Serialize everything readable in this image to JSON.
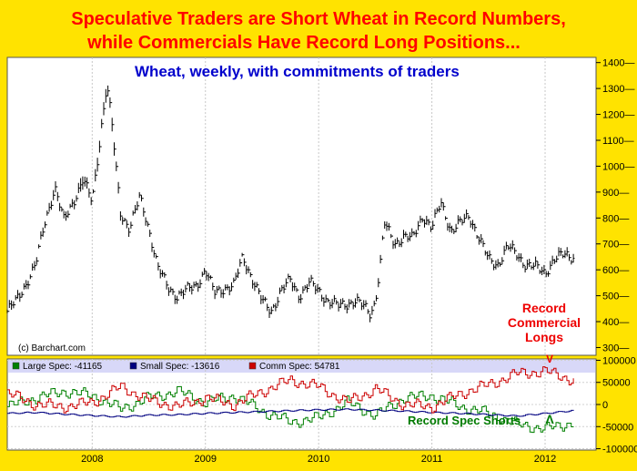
{
  "headline": {
    "line1": "Speculative Traders are Short Wheat in Record Numbers,",
    "line2": "while Commercials Have Record Long Positions..."
  },
  "colors": {
    "background": "#ffe300",
    "headline": "#ff0000",
    "title": "#0000cc",
    "price": "#000000",
    "large_spec": "#008000",
    "small_spec": "#000080",
    "comm_spec": "#cc0000",
    "annotation_red": "#ee0000",
    "annotation_green": "#007a00"
  },
  "chart_data": [
    {
      "type": "line",
      "title": "Wheat,  weekly,  with commitments of traders",
      "source": "(c) Barchart.com",
      "y_side": "right",
      "ylim": [
        270,
        1420
      ],
      "yticks": [
        300,
        400,
        500,
        600,
        700,
        800,
        900,
        1000,
        1100,
        1200,
        1300,
        1400
      ],
      "xlim": [
        2007.25,
        2012.45
      ],
      "xticks": [
        "2008",
        "2009",
        "2010",
        "2011",
        "2012"
      ],
      "xtick_values": [
        2008.0,
        2009.0,
        2010.0,
        2011.0,
        2012.0
      ],
      "series": [
        {
          "x": [
            2007.25,
            2007.33,
            2007.42,
            2007.5,
            2007.58,
            2007.67,
            2007.75,
            2007.83,
            2007.92,
            2008.0,
            2008.04,
            2008.08,
            2008.13,
            2008.17,
            2008.21,
            2008.25,
            2008.33,
            2008.42,
            2008.5,
            2008.58,
            2008.67,
            2008.75,
            2008.83,
            2008.92,
            2009.0,
            2009.08,
            2009.17,
            2009.25,
            2009.33,
            2009.42,
            2009.5,
            2009.58,
            2009.67,
            2009.75,
            2009.83,
            2009.92,
            2010.0,
            2010.08,
            2010.17,
            2010.25,
            2010.33,
            2010.42,
            2010.46,
            2010.5,
            2010.54,
            2010.58,
            2010.67,
            2010.75,
            2010.83,
            2010.92,
            2011.0,
            2011.08,
            2011.17,
            2011.25,
            2011.33,
            2011.42,
            2011.5,
            2011.58,
            2011.67,
            2011.75,
            2011.83,
            2011.92,
            2012.0,
            2012.08,
            2012.17,
            2012.25
          ],
          "values": [
            440,
            480,
            550,
            620,
            780,
            920,
            790,
            860,
            950,
            860,
            1000,
            1150,
            1320,
            1180,
            1000,
            820,
            760,
            880,
            760,
            610,
            530,
            500,
            520,
            540,
            600,
            510,
            530,
            540,
            650,
            560,
            480,
            440,
            520,
            560,
            500,
            550,
            520,
            480,
            460,
            470,
            480,
            450,
            430,
            480,
            600,
            780,
            700,
            730,
            720,
            810,
            760,
            860,
            750,
            780,
            810,
            720,
            640,
            620,
            690,
            660,
            620,
            610,
            590,
            640,
            660,
            650
          ]
        }
      ]
    },
    {
      "type": "line",
      "title": "",
      "y_side": "right",
      "ylim": [
        -103000,
        103000
      ],
      "yticks": [
        100000,
        50000,
        0,
        -50000,
        -100000
      ],
      "xlim": [
        2007.25,
        2012.45
      ],
      "x": [
        2007.25,
        2007.5,
        2007.75,
        2008.0,
        2008.25,
        2008.5,
        2008.75,
        2009.0,
        2009.25,
        2009.5,
        2009.75,
        2010.0,
        2010.25,
        2010.5,
        2010.75,
        2011.0,
        2011.25,
        2011.5,
        2011.75,
        2012.0,
        2012.25
      ],
      "series": [
        {
          "name": "Large Spec: -41165",
          "values": [
            -5000,
            15000,
            30000,
            20000,
            -10000,
            15000,
            30000,
            5000,
            20000,
            -15000,
            -40000,
            -30000,
            5000,
            -25000,
            15000,
            20000,
            -5000,
            -20000,
            -45000,
            -55000,
            -41165
          ]
        },
        {
          "name": "Small Spec: -13616",
          "values": [
            -20000,
            -18000,
            -22000,
            -25000,
            -28000,
            -24000,
            -23000,
            -20000,
            -18000,
            -16000,
            -14000,
            -12000,
            -11000,
            -13000,
            -15000,
            -18000,
            -20000,
            -23000,
            -26000,
            -20000,
            -13616
          ]
        },
        {
          "name": "Comm Spec: 54781",
          "values": [
            25000,
            0,
            -5000,
            5000,
            40000,
            10000,
            -5000,
            15000,
            0,
            30000,
            55000,
            40000,
            5000,
            35000,
            0,
            -5000,
            25000,
            45000,
            70000,
            75000,
            54781
          ]
        }
      ]
    }
  ],
  "annotations": {
    "record_commercial": [
      "Record",
      "Commercial",
      "Longs"
    ],
    "arrow_down": "V",
    "record_spec": "Record Spec Shorts",
    "arrow_up": "Λ"
  }
}
